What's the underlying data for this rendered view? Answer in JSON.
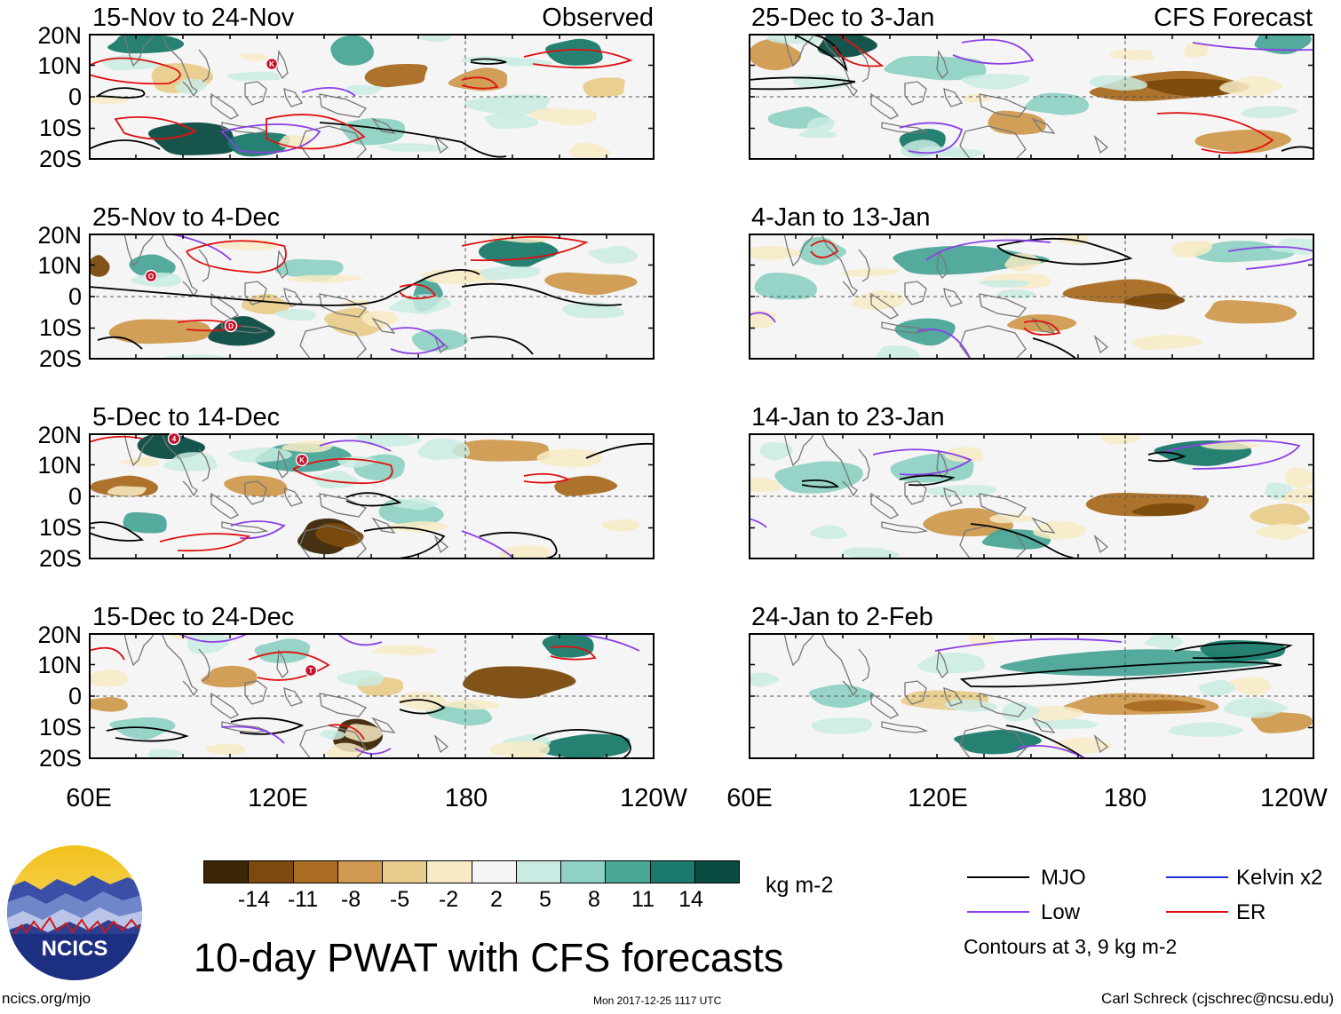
{
  "title": "10-day PWAT with CFS forecasts",
  "units": "kg m-2",
  "panels": [
    {
      "label": "15-Nov to 24-Nov",
      "tag": "Observed",
      "storms": [
        "K"
      ]
    },
    {
      "label": "25-Dec to 3-Jan",
      "tag": "CFS Forecast",
      "storms": []
    },
    {
      "label": "25-Nov to 4-Dec",
      "tag": "",
      "storms": [
        "O",
        "D"
      ]
    },
    {
      "label": "4-Jan to 13-Jan",
      "tag": "",
      "storms": []
    },
    {
      "label": "5-Dec to 14-Dec",
      "tag": "",
      "storms": [
        "4",
        "K"
      ]
    },
    {
      "label": "14-Jan to 23-Jan",
      "tag": "",
      "storms": []
    },
    {
      "label": "15-Dec to 24-Dec",
      "tag": "",
      "storms": [
        "T"
      ]
    },
    {
      "label": "24-Jan to 2-Feb",
      "tag": "",
      "storms": []
    }
  ],
  "lat_labels": [
    "20N",
    "10N",
    "0",
    "10S",
    "20S"
  ],
  "lon_labels": [
    "60E",
    "120E",
    "180",
    "120W"
  ],
  "colorbar": {
    "ticks": [
      "-14",
      "-11",
      "-8",
      "-5",
      "-2",
      "2",
      "5",
      "8",
      "11",
      "14"
    ],
    "colors": [
      "#3d2606",
      "#7b4a0c",
      "#a96c22",
      "#cf9a4f",
      "#e8cc8c",
      "#f7ebc6",
      "#f5f5f5",
      "#c9ebe3",
      "#8fd2c3",
      "#4ba798",
      "#1a7a6c",
      "#0b4c42"
    ]
  },
  "legend": [
    {
      "label": "MJO",
      "color": "#000000"
    },
    {
      "label": "Kelvin x2",
      "color": "#1f2bd6"
    },
    {
      "label": "Low",
      "color": "#8b3fe6"
    },
    {
      "label": "ER",
      "color": "#e01010"
    }
  ],
  "contour_note": "Contours at 3, 9 kg m-2",
  "logo_text": "NCICS",
  "site_url": "ncics.org/mjo",
  "timestamp": "Mon 2017-12-25 1117 UTC",
  "credit": "Carl Schreck (cjschrec@ncsu.edu)"
}
